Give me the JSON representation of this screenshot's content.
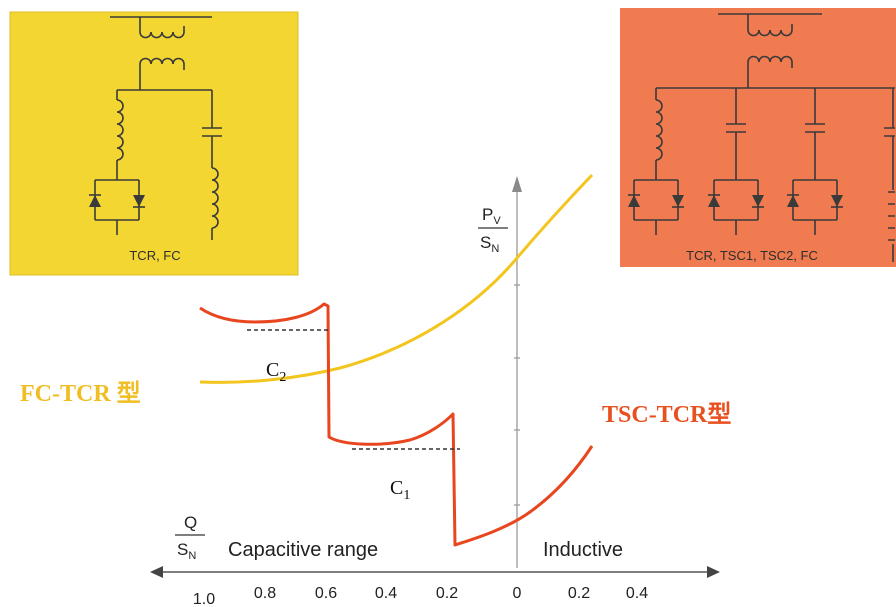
{
  "circuits": {
    "fc_tcr": {
      "label": "TCR, FC"
    },
    "tsc_tcr": {
      "label": "TCR, TSC1, TSC2, FC"
    }
  },
  "axes": {
    "y_label": {
      "num": "P",
      "num_sub": "V",
      "den": "S",
      "den_sub": "N"
    },
    "x_label": {
      "num": "Q",
      "den": "S",
      "den_sub": "N"
    },
    "x_ticks": [
      "1.0",
      "0.8",
      "0.6",
      "0.4",
      "0.2",
      "0",
      "0.2",
      "0.4"
    ],
    "capacitive_range": "Capacitive range",
    "inductive_range": "Inductive"
  },
  "curves": {
    "fc_tcr": {
      "label": "FC-TCR 型",
      "color": "#f0c020"
    },
    "tsc_tcr": {
      "label": "TSC-TCR型",
      "color": "#e8461e"
    }
  },
  "annotations": {
    "c2": {
      "letter": "C",
      "sub": "2"
    },
    "c1": {
      "letter": "C",
      "sub": "1"
    }
  },
  "colors": {
    "fc_tcr_panel": "#f3d631",
    "tsc_tcr_panel": "#f07b50"
  }
}
